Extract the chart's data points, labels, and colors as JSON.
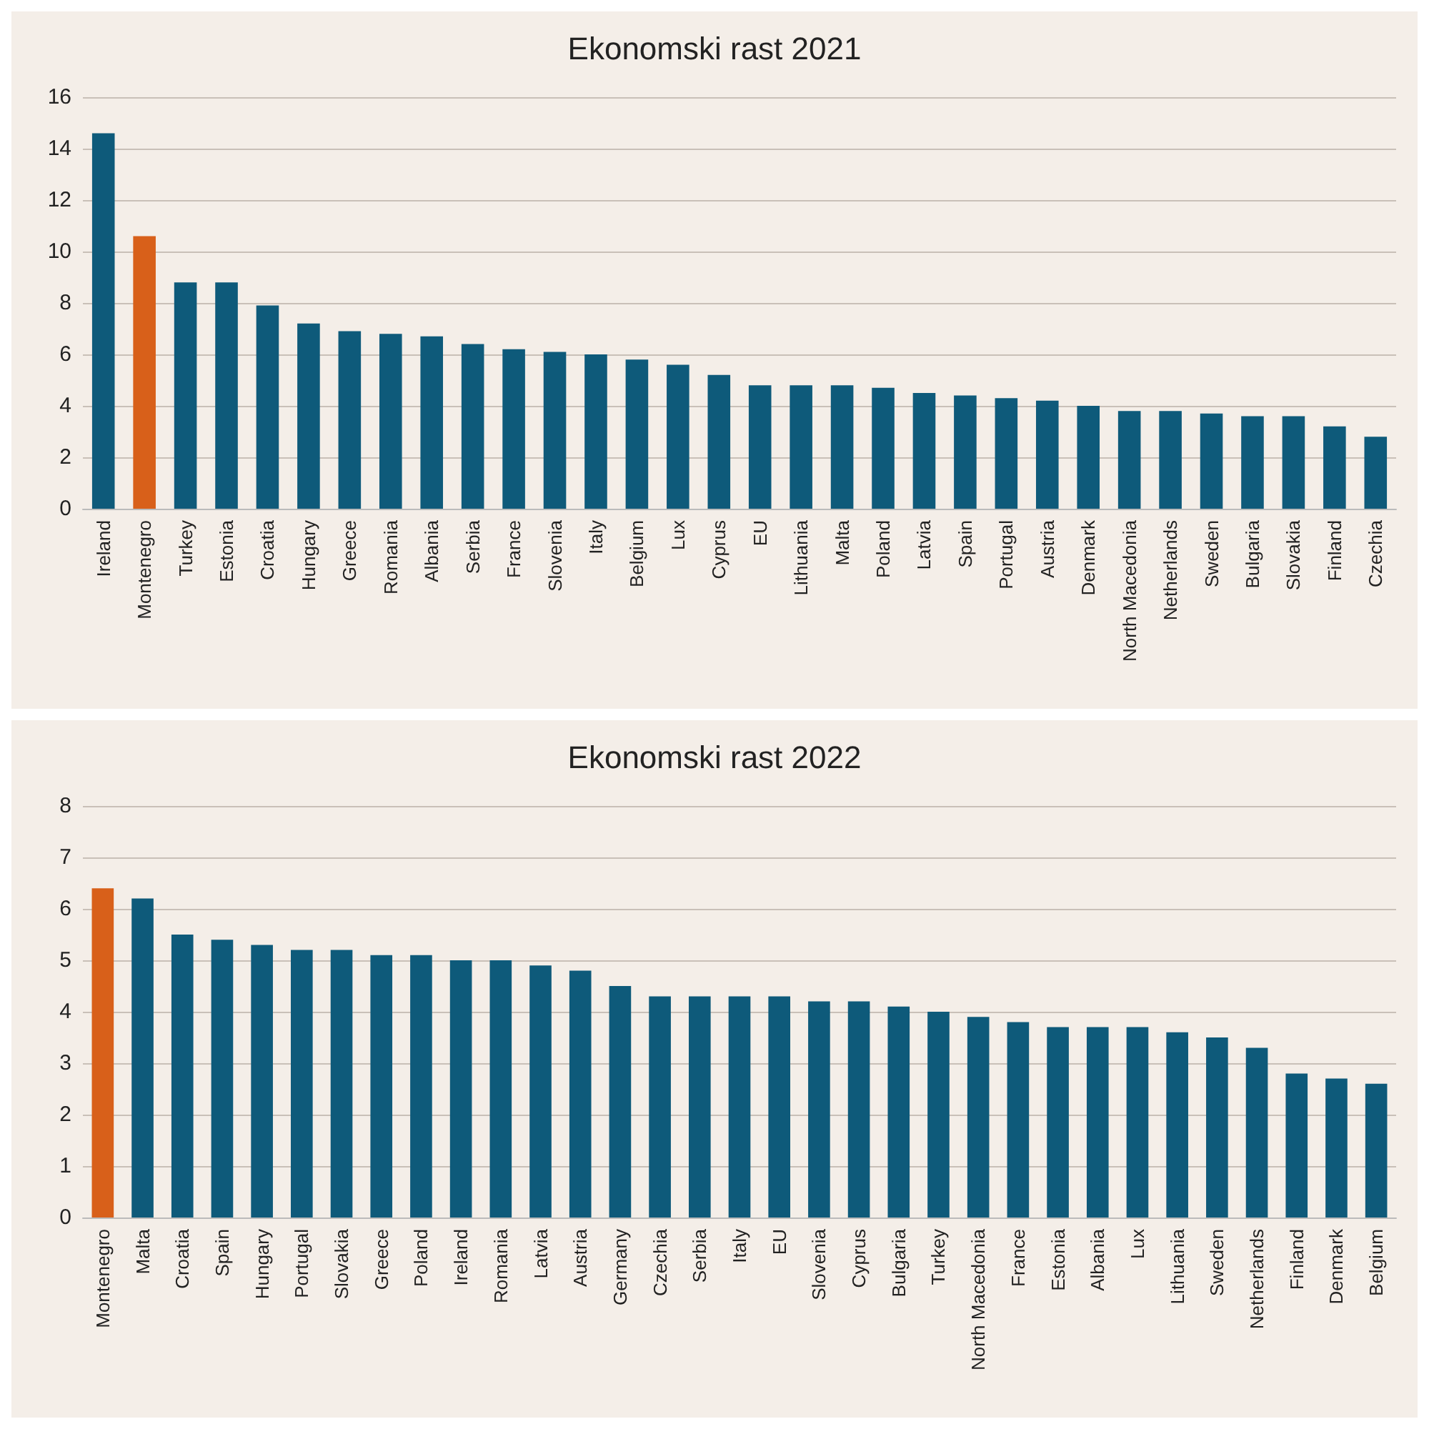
{
  "chart_data": [
    {
      "type": "bar",
      "title": "Ekonomski rast 2021",
      "categories": [
        "Ireland",
        "Montenegro",
        "Turkey",
        "Estonia",
        "Croatia",
        "Hungary",
        "Greece",
        "Romania",
        "Albania",
        "Serbia",
        "France",
        "Slovenia",
        "Italy",
        "Belgium",
        "Lux",
        "Cyprus",
        "EU",
        "Lithuania",
        "Malta",
        "Poland",
        "Latvia",
        "Spain",
        "Portugal",
        "Austria",
        "Denmark",
        "North Macedonia",
        "Netherlands",
        "Sweden",
        "Bulgaria",
        "Slovakia",
        "Finland",
        "Czechia"
      ],
      "values": [
        14.6,
        10.6,
        8.8,
        8.8,
        7.9,
        7.2,
        6.9,
        6.8,
        6.7,
        6.4,
        6.2,
        6.1,
        6.0,
        5.8,
        5.6,
        5.2,
        4.8,
        4.8,
        4.8,
        4.7,
        4.5,
        4.4,
        4.3,
        4.2,
        4.0,
        3.8,
        3.8,
        3.7,
        3.6,
        3.6,
        3.2,
        2.8
      ],
      "colors": [
        "#0e5a7a",
        "#d8601a",
        "#0e5a7a",
        "#0e5a7a",
        "#0e5a7a",
        "#0e5a7a",
        "#0e5a7a",
        "#0e5a7a",
        "#0e5a7a",
        "#0e5a7a",
        "#0e5a7a",
        "#0e5a7a",
        "#0e5a7a",
        "#0e5a7a",
        "#0e5a7a",
        "#0e5a7a",
        "#0e5a7a",
        "#0e5a7a",
        "#0e5a7a",
        "#0e5a7a",
        "#0e5a7a",
        "#0e5a7a",
        "#0e5a7a",
        "#0e5a7a",
        "#0e5a7a",
        "#0e5a7a",
        "#0e5a7a",
        "#0e5a7a",
        "#0e5a7a",
        "#0e5a7a",
        "#0e5a7a",
        "#0e5a7a"
      ],
      "ylim": [
        0,
        16
      ],
      "yticks": [
        0,
        2,
        4,
        6,
        8,
        10,
        12,
        14,
        16
      ],
      "grid": "y"
    },
    {
      "type": "bar",
      "title": "Ekonomski rast 2022",
      "categories": [
        "Montenegro",
        "Malta",
        "Croatia",
        "Spain",
        "Hungary",
        "Portugal",
        "Slovakia",
        "Greece",
        "Poland",
        "Ireland",
        "Romania",
        "Latvia",
        "Austria",
        "Germany",
        "Czechia",
        "Serbia",
        "Italy",
        "EU",
        "Slovenia",
        "Cyprus",
        "Bulgaria",
        "Turkey",
        "North Macedonia",
        "France",
        "Estonia",
        "Albania",
        "Lux",
        "Lithuania",
        "Sweden",
        "Netherlands",
        "Finland",
        "Denmark",
        "Belgium"
      ],
      "values": [
        6.4,
        6.2,
        5.5,
        5.4,
        5.3,
        5.2,
        5.2,
        5.1,
        5.1,
        5.0,
        5.0,
        4.9,
        4.8,
        4.5,
        4.3,
        4.3,
        4.3,
        4.3,
        4.2,
        4.2,
        4.1,
        4.0,
        3.9,
        3.8,
        3.7,
        3.7,
        3.7,
        3.6,
        3.5,
        3.3,
        2.8,
        2.7,
        2.6
      ],
      "colors": [
        "#d8601a",
        "#0e5a7a",
        "#0e5a7a",
        "#0e5a7a",
        "#0e5a7a",
        "#0e5a7a",
        "#0e5a7a",
        "#0e5a7a",
        "#0e5a7a",
        "#0e5a7a",
        "#0e5a7a",
        "#0e5a7a",
        "#0e5a7a",
        "#0e5a7a",
        "#0e5a7a",
        "#0e5a7a",
        "#0e5a7a",
        "#0e5a7a",
        "#0e5a7a",
        "#0e5a7a",
        "#0e5a7a",
        "#0e5a7a",
        "#0e5a7a",
        "#0e5a7a",
        "#0e5a7a",
        "#0e5a7a",
        "#0e5a7a",
        "#0e5a7a",
        "#0e5a7a",
        "#0e5a7a",
        "#0e5a7a",
        "#0e5a7a",
        "#0e5a7a"
      ],
      "ylim": [
        0,
        8
      ],
      "yticks": [
        0,
        1,
        2,
        3,
        4,
        5,
        6,
        7,
        8
      ],
      "grid": "y"
    }
  ]
}
